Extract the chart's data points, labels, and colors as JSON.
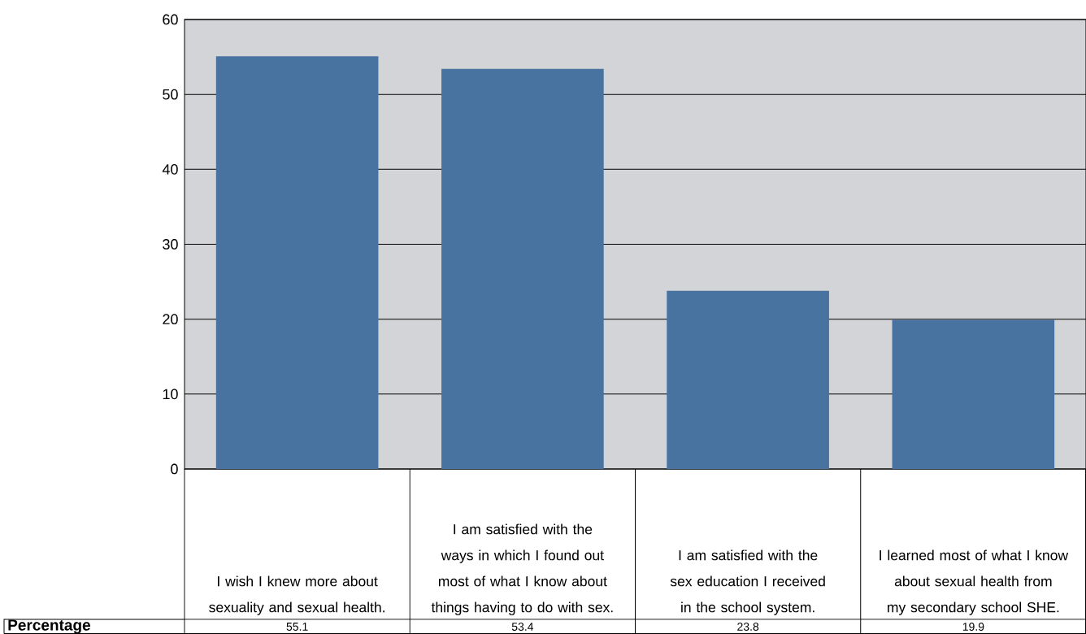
{
  "chart_data": {
    "type": "bar",
    "categories": [
      "I wish I knew more about sexuality and sexual health.",
      "I am satisfied with the ways in which I found out most of what I know about things having to do with sex.",
      "I am satisfied with the sex education I received in the school system.",
      "I learned most of what I know about sexual health from my secondary school SHE."
    ],
    "series": [
      {
        "name": "Percentage",
        "color": "#48729f",
        "values": [
          55.1,
          53.4,
          23.8,
          19.9
        ]
      }
    ],
    "ylim": [
      0,
      60
    ],
    "yticks": [
      0,
      10,
      20,
      30,
      40,
      50,
      60
    ],
    "grid": "y",
    "data_labels": true
  }
}
